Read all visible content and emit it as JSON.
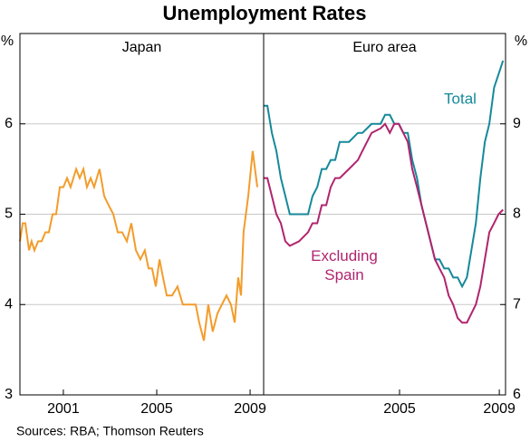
{
  "title": "Unemployment Rates",
  "source": "Sources: RBA; Thomson Reuters",
  "chart_data": [
    {
      "type": "line",
      "title": "Japan",
      "unit": "%",
      "axis_side": "left",
      "xlim": [
        1999.14,
        2009.58
      ],
      "xticks": [
        2001,
        2005,
        2009
      ],
      "ylim": [
        3,
        7
      ],
      "yticks": [
        3,
        4,
        5,
        6
      ],
      "grid": true,
      "x": [
        1999.14,
        1999.26,
        1999.37,
        1999.53,
        1999.64,
        1999.76,
        1999.92,
        2000.07,
        2000.23,
        2000.38,
        2000.54,
        2000.69,
        2000.85,
        2001.0,
        2001.16,
        2001.31,
        2001.55,
        2001.7,
        2001.86,
        2002.01,
        2002.17,
        2002.32,
        2002.55,
        2002.75,
        2002.94,
        2003.14,
        2003.33,
        2003.52,
        2003.72,
        2003.91,
        2004.11,
        2004.3,
        2004.49,
        2004.65,
        2004.8,
        2004.96,
        2005.12,
        2005.27,
        2005.43,
        2005.66,
        2005.89,
        2006.12,
        2006.43,
        2006.67,
        2006.82,
        2007.02,
        2007.21,
        2007.4,
        2007.6,
        2007.79,
        2007.99,
        2008.18,
        2008.34,
        2008.49,
        2008.61,
        2008.72,
        2008.92,
        2009.11,
        2009.31
      ],
      "series": [
        {
          "color": "#f39c2b",
          "values": [
            4.7,
            4.9,
            4.9,
            4.6,
            4.7,
            4.6,
            4.7,
            4.7,
            4.8,
            4.8,
            5.0,
            5.0,
            5.3,
            5.3,
            5.4,
            5.3,
            5.5,
            5.4,
            5.5,
            5.3,
            5.4,
            5.3,
            5.5,
            5.2,
            5.1,
            5.0,
            4.8,
            4.8,
            4.7,
            4.9,
            4.6,
            4.5,
            4.6,
            4.4,
            4.4,
            4.2,
            4.5,
            4.3,
            4.1,
            4.1,
            4.2,
            4.0,
            4.0,
            4.0,
            3.8,
            3.6,
            4.0,
            3.7,
            3.9,
            4.0,
            4.1,
            4.0,
            3.8,
            4.3,
            4.1,
            4.8,
            5.2,
            5.7,
            5.3
          ]
        }
      ]
    },
    {
      "type": "line",
      "title": "Euro area",
      "unit": "%",
      "axis_side": "right",
      "xlim": [
        1999.55,
        2009.25
      ],
      "xticks": [
        2005,
        2009
      ],
      "ylim": [
        6,
        10
      ],
      "yticks": [
        6,
        7,
        8,
        9
      ],
      "grid": true,
      "x": [
        1999.55,
        1999.7,
        1999.88,
        2000.06,
        2000.24,
        2000.42,
        2000.6,
        2000.97,
        2001.33,
        2001.51,
        2001.7,
        2001.88,
        2002.06,
        2002.24,
        2002.42,
        2002.6,
        2002.97,
        2003.33,
        2003.51,
        2003.88,
        2004.24,
        2004.42,
        2004.61,
        2004.79,
        2004.97,
        2005.15,
        2005.33,
        2005.51,
        2005.7,
        2005.88,
        2006.06,
        2006.24,
        2006.42,
        2006.6,
        2006.79,
        2006.97,
        2007.15,
        2007.33,
        2007.51,
        2007.7,
        2007.88,
        2008.06,
        2008.24,
        2008.42,
        2008.6,
        2008.79,
        2008.97,
        2009.15
      ],
      "series": [
        {
          "name": "Total",
          "color": "#16899a",
          "values": [
            9.2,
            9.2,
            8.9,
            8.7,
            8.4,
            8.2,
            8.0,
            8.0,
            8.0,
            8.2,
            8.3,
            8.5,
            8.5,
            8.6,
            8.6,
            8.8,
            8.8,
            8.9,
            8.9,
            9.0,
            9.0,
            9.1,
            9.1,
            9.0,
            9.0,
            8.9,
            8.9,
            8.6,
            8.4,
            8.1,
            7.9,
            7.7,
            7.5,
            7.5,
            7.4,
            7.4,
            7.3,
            7.3,
            7.2,
            7.3,
            7.6,
            7.9,
            8.4,
            8.8,
            9.0,
            9.4,
            9.55,
            9.7
          ]
        },
        {
          "name": "Excluding Spain",
          "color": "#b0246e",
          "values": [
            8.4,
            8.4,
            8.2,
            8.0,
            7.9,
            7.7,
            7.65,
            7.7,
            7.8,
            7.9,
            7.9,
            8.1,
            8.1,
            8.3,
            8.4,
            8.4,
            8.5,
            8.6,
            8.7,
            8.9,
            8.95,
            9.0,
            8.9,
            9.0,
            9.0,
            8.9,
            8.8,
            8.5,
            8.3,
            8.1,
            7.9,
            7.7,
            7.5,
            7.4,
            7.3,
            7.1,
            7.0,
            6.85,
            6.8,
            6.8,
            6.9,
            7.0,
            7.2,
            7.5,
            7.8,
            7.9,
            8.0,
            8.05
          ]
        }
      ]
    }
  ]
}
